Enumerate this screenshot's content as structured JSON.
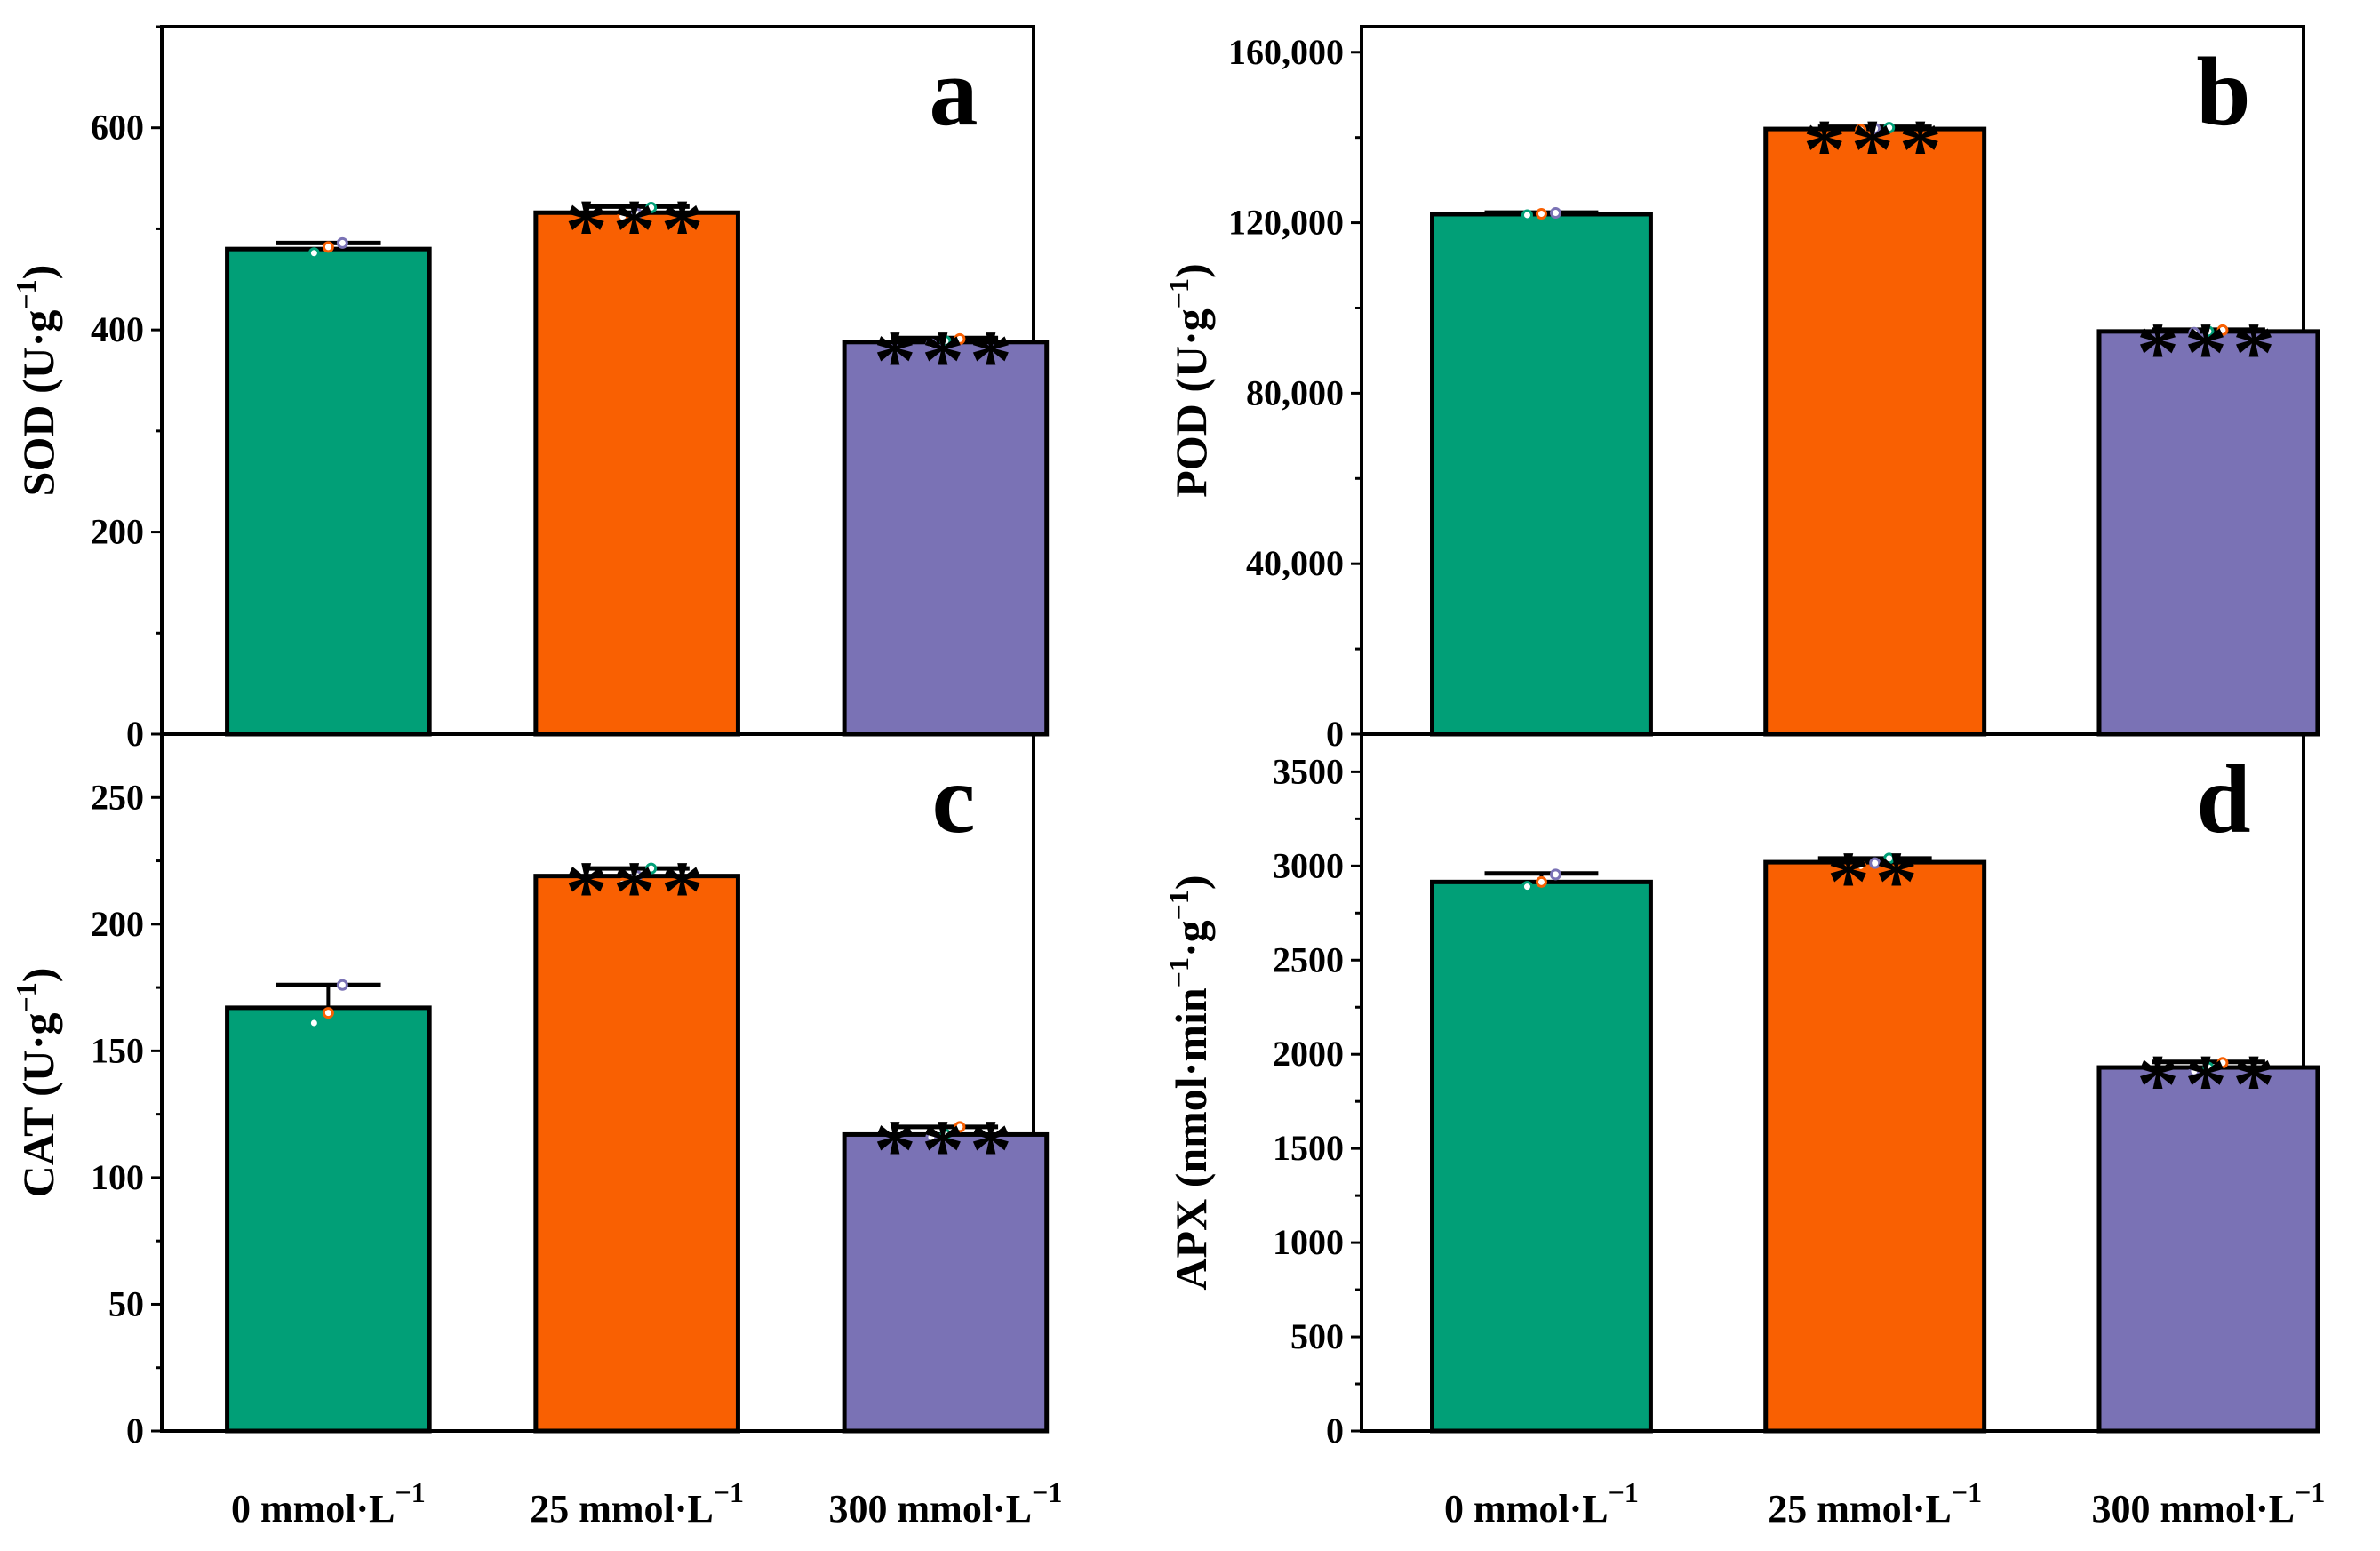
{
  "colors": {
    "control": "#019f77",
    "mid": "#f96002",
    "high": "#7a72b5"
  },
  "x_categories": [
    {
      "main": "0 mmol·L",
      "sup": "−1"
    },
    {
      "main": "25 mmol·L",
      "sup": "−1"
    },
    {
      "main": "300 mmol·L",
      "sup": "−1"
    }
  ],
  "chart_data": [
    {
      "id": "a",
      "type": "bar",
      "letter": "a",
      "ylabel": {
        "main": "SOD (U·g",
        "sup": "−1",
        "tail": ")"
      },
      "ylim": [
        0,
        700
      ],
      "yticks": [
        0,
        200,
        400,
        600
      ],
      "ytick_labels": [
        "0",
        "200",
        "400",
        "600"
      ],
      "categories": [
        "0 mmol·L−1",
        "25 mmol·L−1",
        "300 mmol·L−1"
      ],
      "values": [
        480,
        516,
        388
      ],
      "errors": [
        6,
        6,
        4
      ],
      "significance": [
        "",
        "***",
        "***"
      ],
      "points": [
        [
          476,
          482,
          486
        ],
        [
          512,
          515,
          521
        ],
        [
          386,
          389,
          391
        ]
      ]
    },
    {
      "id": "b",
      "type": "bar",
      "letter": "b",
      "ylabel": {
        "main": "POD (U·g",
        "sup": "−1",
        "tail": ")"
      },
      "ylim": [
        0,
        166000
      ],
      "yticks": [
        0,
        40000,
        80000,
        120000,
        160000
      ],
      "ytick_labels": [
        "0",
        "40,000",
        "80,000",
        "120,000",
        "160,000"
      ],
      "categories": [
        "0 mmol·L−1",
        "25 mmol·L−1",
        "300 mmol·L−1"
      ],
      "values": [
        122000,
        142000,
        94500
      ],
      "errors": [
        400,
        500,
        400
      ],
      "significance": [
        "",
        "***",
        "***"
      ],
      "points": [
        [
          121800,
          122100,
          122300
        ],
        [
          141800,
          142100,
          142300
        ],
        [
          94200,
          94500,
          94800
        ]
      ]
    },
    {
      "id": "c",
      "type": "bar",
      "letter": "c",
      "ylabel": {
        "main": "CAT (U·g",
        "sup": "−1",
        "tail": ")"
      },
      "ylim": [
        0,
        275
      ],
      "yticks": [
        0,
        50,
        100,
        150,
        200,
        250
      ],
      "ytick_labels": [
        "0",
        "50",
        "100",
        "150",
        "200",
        "250"
      ],
      "categories": [
        "0 mmol·L−1",
        "25 mmol·L−1",
        "300 mmol·L−1"
      ],
      "values": [
        167,
        219,
        117
      ],
      "errors": [
        9,
        3,
        3
      ],
      "significance": [
        "",
        "***",
        "***"
      ],
      "points": [
        [
          161,
          165,
          176
        ],
        [
          216,
          219,
          222
        ],
        [
          116,
          117,
          120
        ]
      ]
    },
    {
      "id": "d",
      "type": "bar",
      "letter": "d",
      "ylabel": {
        "main": "APX (nmol·min",
        "sup": "−1",
        "mid": "·g",
        "sup2": "−1",
        "tail": ")"
      },
      "ylim": [
        0,
        3700
      ],
      "yticks": [
        0,
        500,
        1000,
        1500,
        2000,
        2500,
        3000,
        3500
      ],
      "ytick_labels": [
        "0",
        "500",
        "1000",
        "1500",
        "2000",
        "2500",
        "3000",
        "3500"
      ],
      "categories": [
        "0 mmol·L−1",
        "25 mmol·L−1",
        "300 mmol·L−1"
      ],
      "values": [
        2915,
        3020,
        1930
      ],
      "errors": [
        45,
        20,
        30
      ],
      "significance": [
        "",
        "**",
        "***"
      ],
      "points": [
        [
          2890,
          2915,
          2955
        ],
        [
          3000,
          3015,
          3040
        ],
        [
          1910,
          1930,
          1955
        ]
      ]
    }
  ]
}
